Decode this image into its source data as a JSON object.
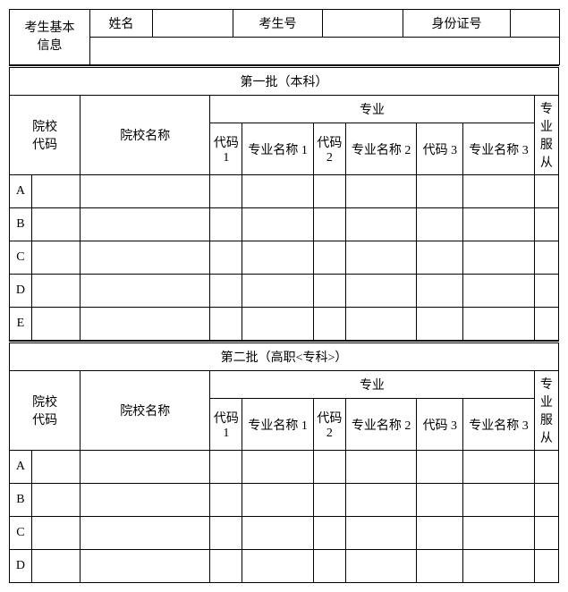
{
  "basic": {
    "heading": "考生基本\n信息",
    "name_label": "姓名",
    "name_value": "",
    "exam_no_label": "考生号",
    "exam_no_value": "",
    "id_no_label": "身份证号",
    "id_no_value": ""
  },
  "batch1": {
    "title": "第一批（本科）",
    "school_code_label": "院校\n代码",
    "school_name_label": "院校名称",
    "majors_label": "专业",
    "code1_label": "代码\n1",
    "major1_label": "专业名称 1",
    "code2_label": "代码\n2",
    "major2_label": "专业名称 2",
    "code3_label": "代码 3",
    "major3_label": "专业名称 3",
    "obey_label": "专业服从",
    "row_letters": [
      "A",
      "B",
      "C",
      "D",
      "E"
    ]
  },
  "batch2": {
    "title": "第二批（高职<专科>）",
    "school_code_label": "院校\n代码",
    "school_name_label": "院校名称",
    "majors_label": "专业",
    "code1_label": "代码\n1",
    "major1_label": "专业名称 1",
    "code2_label": "代码\n2",
    "major2_label": "专业名称 2",
    "code3_label": "代码 3",
    "major3_label": "专业名称 3",
    "obey_label": "专业服从",
    "row_letters": [
      "A",
      "B",
      "C",
      "D"
    ]
  }
}
